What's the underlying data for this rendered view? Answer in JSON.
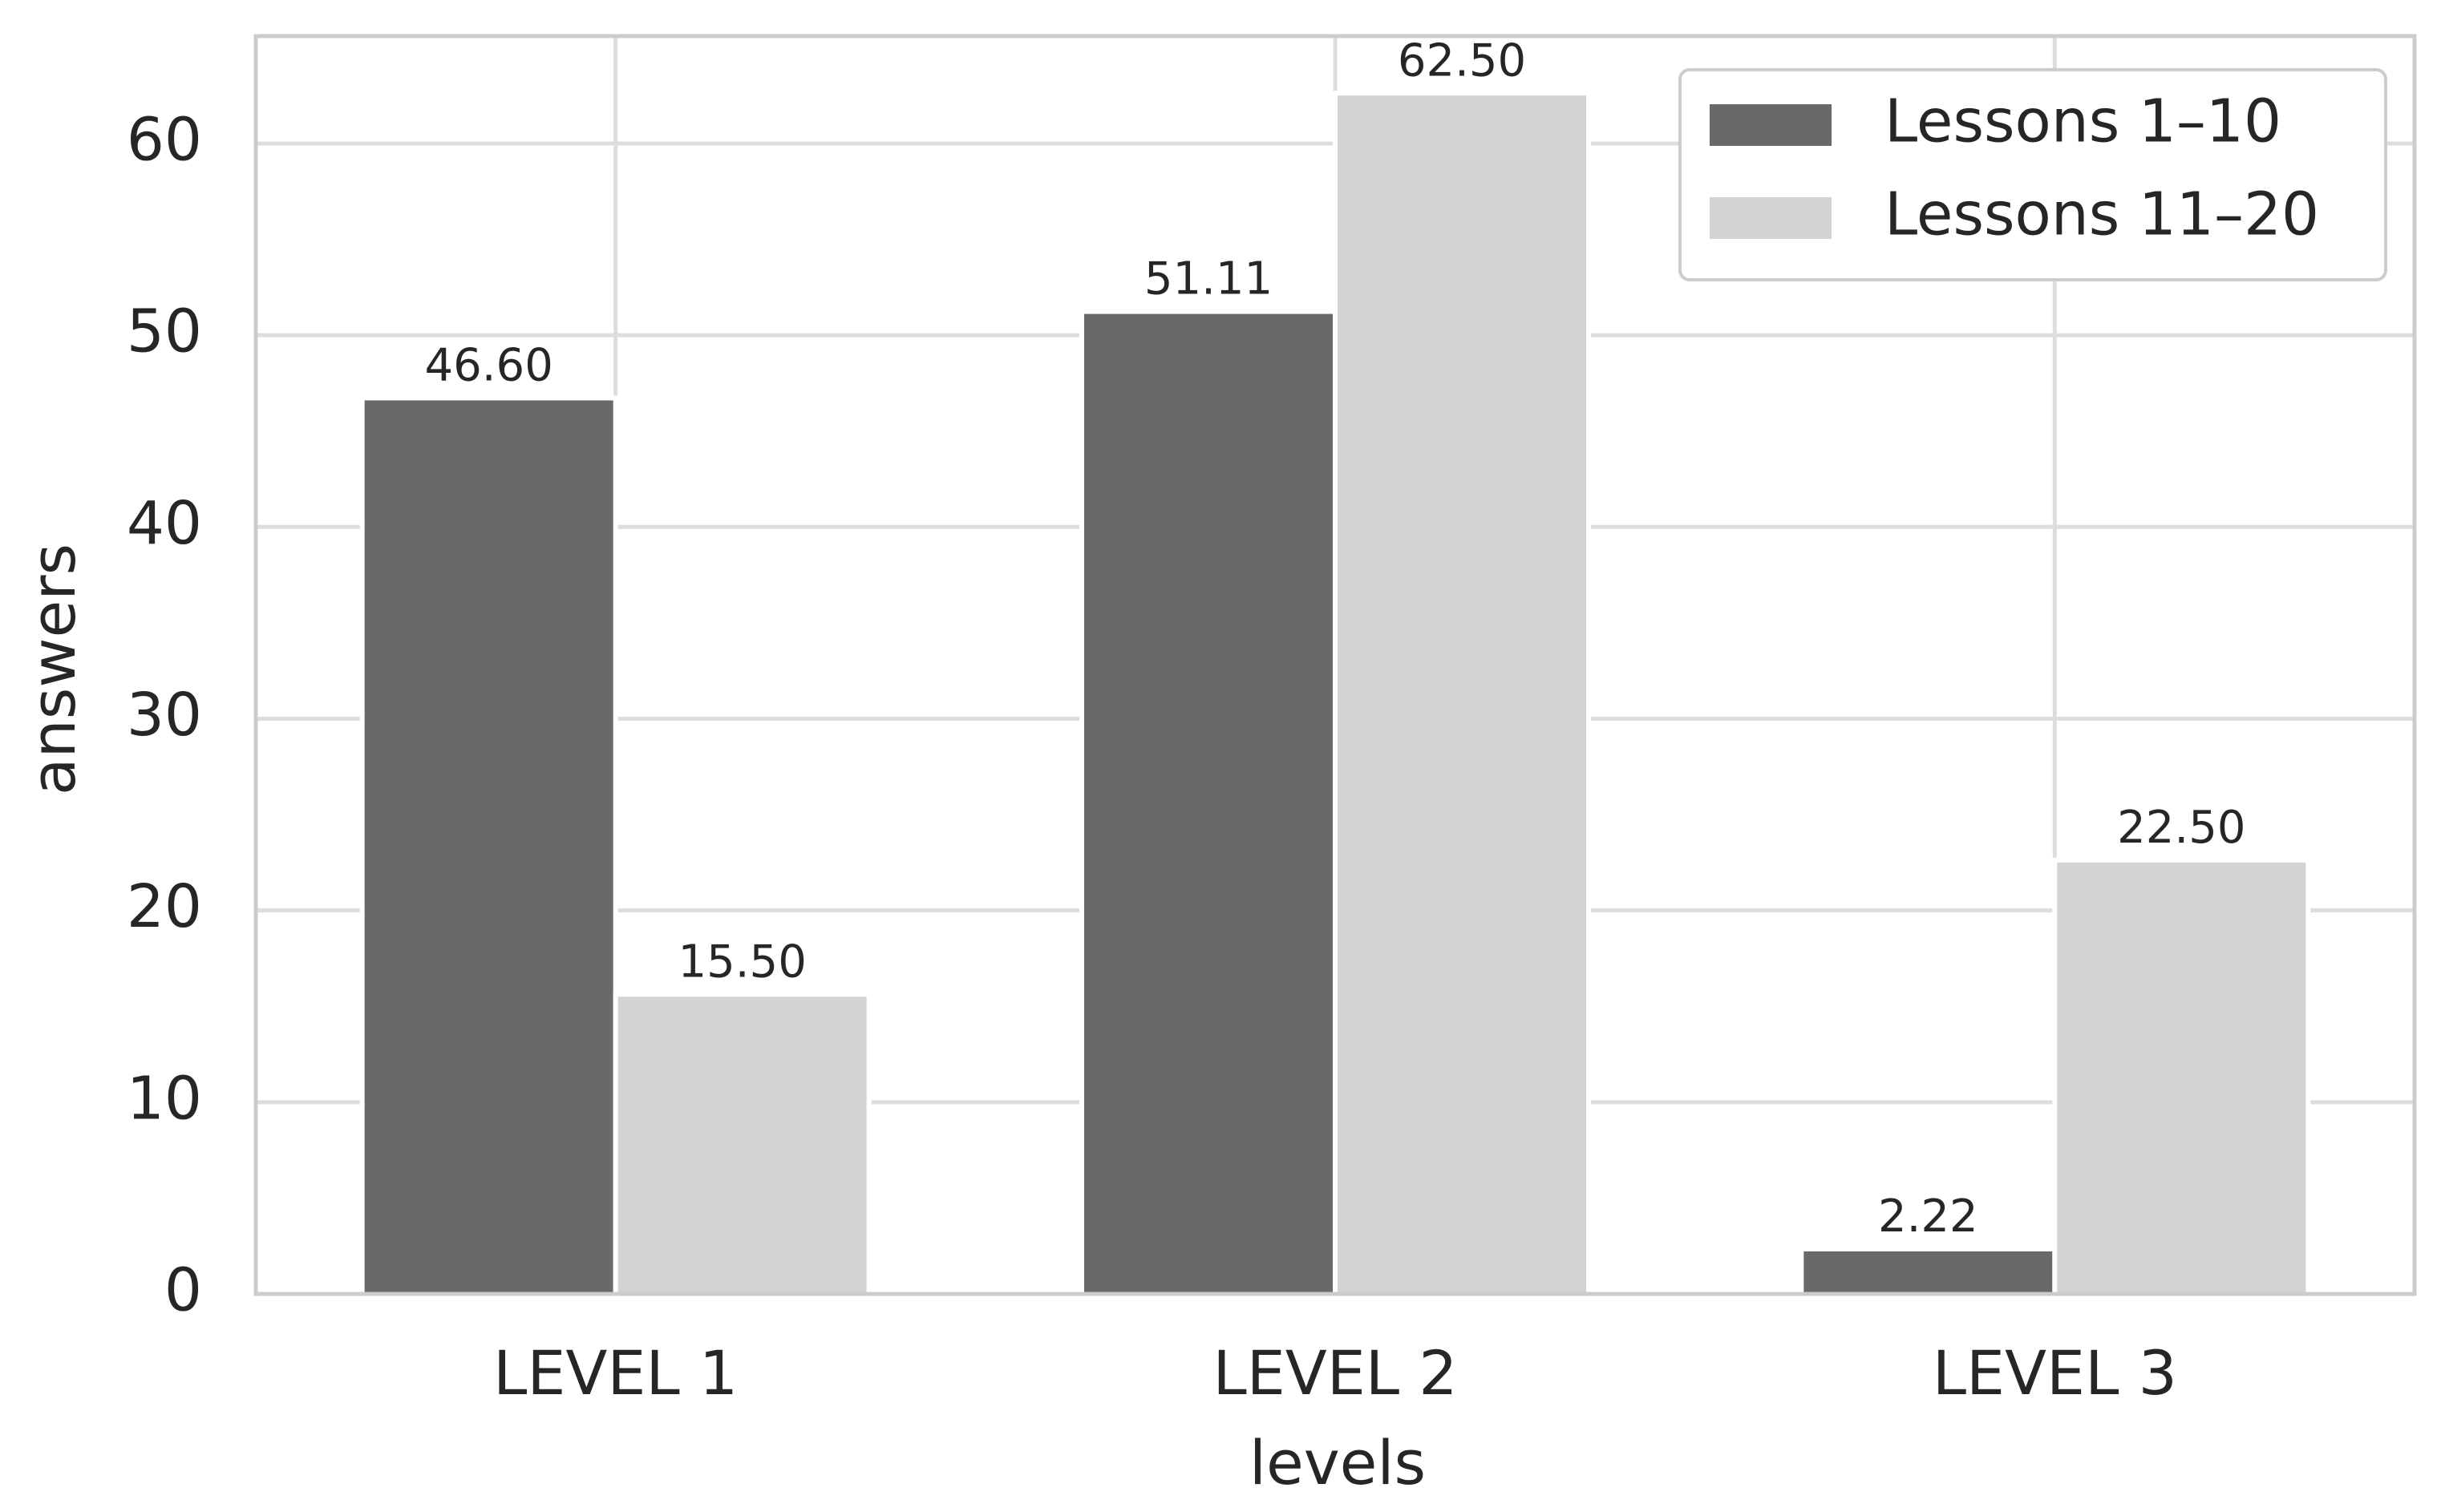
{
  "chart_data": {
    "type": "bar",
    "categories": [
      "LEVEL 1",
      "LEVEL 2",
      "LEVEL 3"
    ],
    "series": [
      {
        "name": "Lessons 1–10",
        "values": [
          46.6,
          51.11,
          2.22
        ],
        "labels": [
          "46.60",
          "51.11",
          "2.22"
        ],
        "color": "#696969"
      },
      {
        "name": "Lessons 11–20",
        "values": [
          15.5,
          62.5,
          22.5
        ],
        "labels": [
          "15.50",
          "62.50",
          "22.50"
        ],
        "color": "#d3d3d3"
      }
    ],
    "xlabel": "levels",
    "ylabel": "answers",
    "ylim": [
      0,
      65.6
    ],
    "yticks": [
      0,
      10,
      20,
      30,
      40,
      50,
      60
    ],
    "ytick_labels": [
      "0",
      "10",
      "20",
      "30",
      "40",
      "50",
      "60"
    ],
    "grid": true,
    "legend_position": "top-right",
    "background": "#ffffff",
    "grid_color": "#dddddd",
    "axes_color": "#cccccc",
    "text_color": "#262626"
  }
}
